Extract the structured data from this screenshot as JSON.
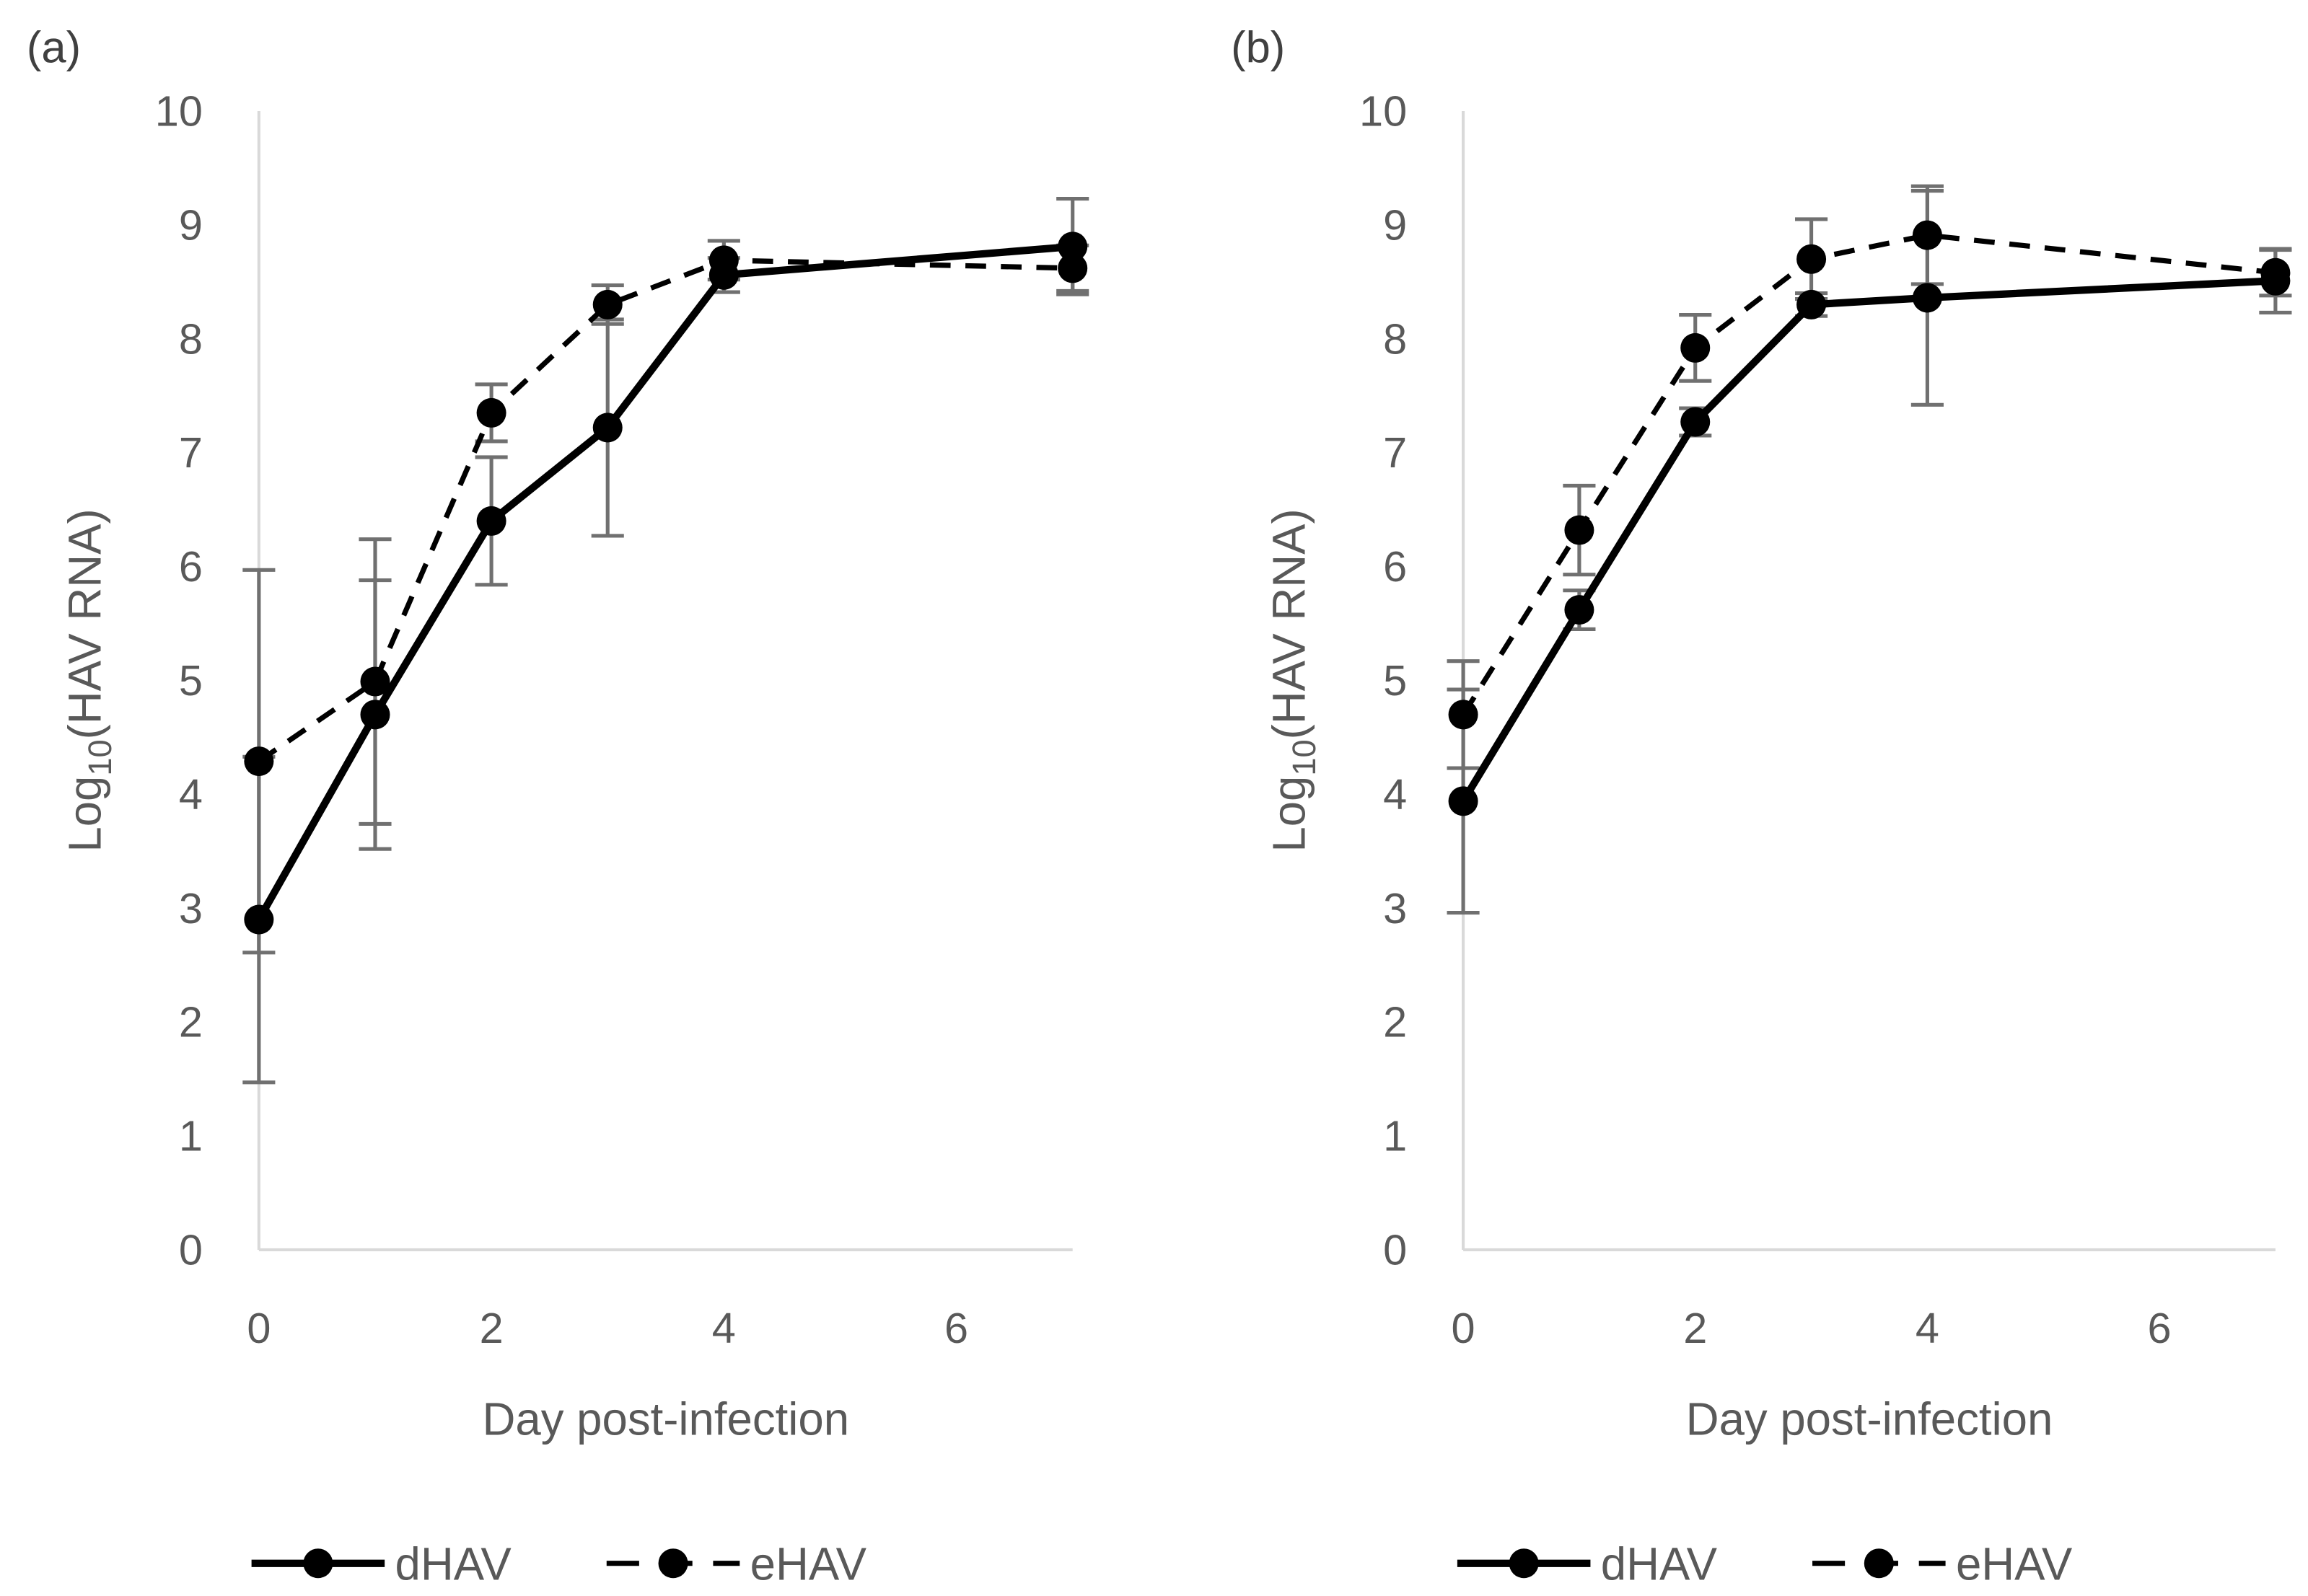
{
  "chart_data": [
    {
      "type": "line",
      "panel_label": "(a)",
      "xlabel": "Day post-infection",
      "ylabel_prefix": "Log",
      "ylabel_sub": "10",
      "ylabel_suffix": "(HAV RNA)",
      "xlim": [
        0,
        7
      ],
      "ylim": [
        0,
        10
      ],
      "xticks": [
        "0",
        "2",
        "4",
        "6"
      ],
      "xtick_values": [
        0,
        2,
        4,
        6
      ],
      "yticks": [
        "0",
        "1",
        "2",
        "3",
        "4",
        "5",
        "6",
        "7",
        "8",
        "9",
        "10"
      ],
      "grid": false,
      "legend_position": "bottom",
      "x": [
        0,
        1,
        2,
        3,
        4,
        7
      ],
      "series": [
        {
          "name": "dHAV",
          "style": "solid",
          "values": [
            2.9,
            4.7,
            6.4,
            7.22,
            8.56,
            8.81
          ],
          "errors": [
            1.43,
            1.18,
            0.56,
            0.95,
            0.15,
            0.42
          ]
        },
        {
          "name": "eHAV",
          "style": "dashed",
          "values": [
            4.29,
            4.99,
            7.35,
            8.3,
            8.69,
            8.62
          ],
          "errors": [
            1.68,
            1.25,
            0.25,
            0.17,
            0.17,
            0.2
          ]
        }
      ]
    },
    {
      "type": "line",
      "panel_label": "(b)",
      "xlabel": "Day post-infection",
      "ylabel_prefix": "Log",
      "ylabel_sub": "10",
      "ylabel_suffix": "(HAV RNA)",
      "xlim": [
        0,
        7
      ],
      "ylim": [
        0,
        10
      ],
      "xticks": [
        "0",
        "2",
        "4",
        "6"
      ],
      "xtick_values": [
        0,
        2,
        4,
        6
      ],
      "yticks": [
        "0",
        "1",
        "2",
        "3",
        "4",
        "5",
        "6",
        "7",
        "8",
        "9",
        "10"
      ],
      "grid": false,
      "legend_position": "bottom",
      "x": [
        0,
        1,
        2,
        3,
        4,
        7
      ],
      "series": [
        {
          "name": "dHAV",
          "style": "solid",
          "values": [
            3.94,
            5.62,
            7.27,
            8.3,
            8.36,
            8.51
          ],
          "errors": [
            0.98,
            0.17,
            0.12,
            0.1,
            0.94,
            0.28
          ]
        },
        {
          "name": "eHAV",
          "style": "dashed",
          "values": [
            4.7,
            6.32,
            7.92,
            8.7,
            8.91,
            8.58
          ],
          "errors": [
            0.47,
            0.39,
            0.29,
            0.35,
            0.43,
            0.2
          ]
        }
      ]
    }
  ],
  "colors": {
    "line": "#000000",
    "axis": "#d9d9d9",
    "errorbar": "#707070",
    "text": "#595959"
  }
}
